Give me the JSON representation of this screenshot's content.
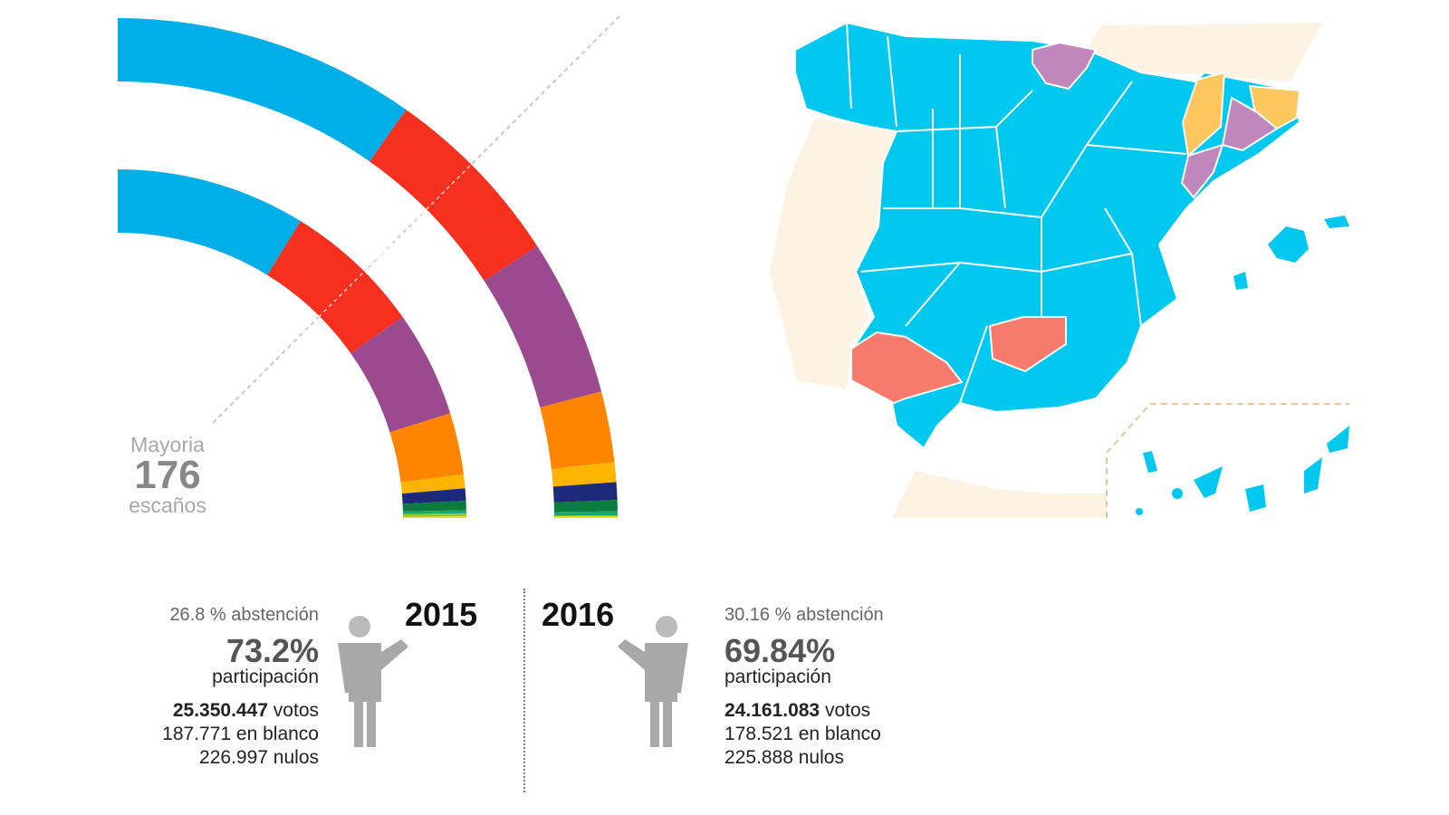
{
  "chart_data": {
    "type": "semicircle-parliament",
    "total_seats": 350,
    "majority": {
      "label_top": "Mayoria",
      "value": "176",
      "label_bottom": "escaños"
    },
    "series": [
      {
        "year": "2015",
        "ring": "inner",
        "parties": [
          {
            "seats": 123,
            "color": "#00aee8"
          },
          {
            "seats": 90,
            "color": "#f5301e"
          },
          {
            "seats": 69,
            "color": "#9b4a8f"
          },
          {
            "seats": 40,
            "color": "#ff8500"
          },
          {
            "seats": 9,
            "color": "#ffb400"
          },
          {
            "seats": 8,
            "color": "#1d2a7a"
          },
          {
            "seats": 6,
            "color": "#0a7c3f"
          },
          {
            "seats": 2,
            "color": "#19a86a"
          },
          {
            "seats": 2,
            "color": "#8dc63f"
          },
          {
            "seats": 1,
            "color": "#e8e300"
          }
        ]
      },
      {
        "year": "2016",
        "ring": "outer",
        "parties": [
          {
            "seats": 137,
            "color": "#00aee8"
          },
          {
            "seats": 85,
            "color": "#f5301e"
          },
          {
            "seats": 71,
            "color": "#9b4a8f"
          },
          {
            "seats": 32,
            "color": "#ff8500"
          },
          {
            "seats": 9,
            "color": "#ffb400"
          },
          {
            "seats": 8,
            "color": "#1d2a7a"
          },
          {
            "seats": 5,
            "color": "#0a7c3f"
          },
          {
            "seats": 2,
            "color": "#19a86a"
          },
          {
            "seats": 1,
            "color": "#e8e300"
          }
        ]
      }
    ]
  },
  "map": {
    "colors": {
      "pp": "#00c8ef",
      "psoe": "#f87a6c",
      "podemos": "#bf87bb",
      "erc": "#fdc65e",
      "land": "#fdf3e3",
      "canarias_box": "#e9c69a"
    }
  },
  "stats": {
    "y2015": {
      "year": "2015",
      "abstention": "26.8 % abstención",
      "participation": "73.2%",
      "participation_label": "participación",
      "votes_num": "25.350.447",
      "votes_label": " votos",
      "blank": "187.771 en blanco",
      "null": "226.997 nulos"
    },
    "y2016": {
      "year": "2016",
      "abstention": "30.16 % abstención",
      "participation": "69.84%",
      "participation_label": "participación",
      "votes_num": "24.161.083",
      "votes_label": " votos",
      "blank": "178.521 en blanco",
      "null": "225.888 nulos"
    }
  },
  "icons": {
    "person": "person-icon"
  }
}
